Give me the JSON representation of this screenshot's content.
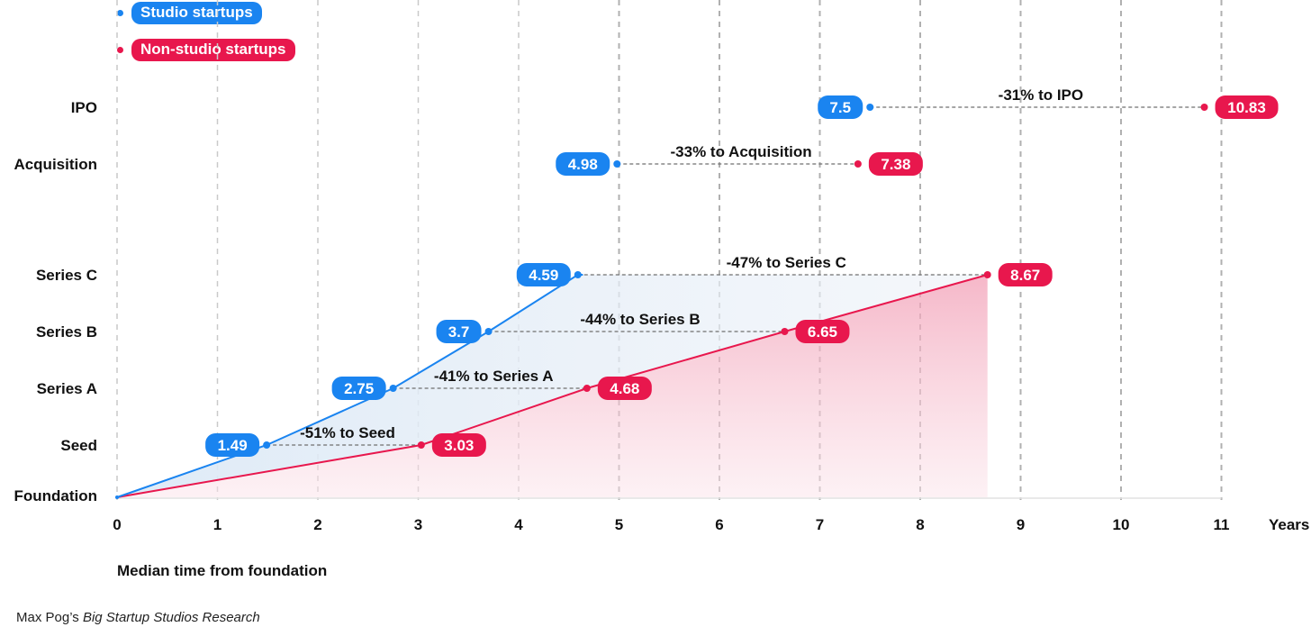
{
  "colors": {
    "studio": "#1a84f0",
    "nonstudio": "#e8174d",
    "grid": "#c9c9c9",
    "connector": "#6f6f6f"
  },
  "legend": [
    {
      "name": "Studio startups",
      "color": "#1a84f0"
    },
    {
      "name": "Non-studio startups",
      "color": "#e8174d"
    }
  ],
  "chart_data": {
    "type": "line",
    "xlabel": "Median time from foundation",
    "x_unit_label": "Years",
    "xlim": [
      0,
      11
    ],
    "x_ticks": [
      "0",
      "1",
      "2",
      "3",
      "4",
      "5",
      "6",
      "7",
      "8",
      "9",
      "10",
      "11"
    ],
    "y_categories": [
      "Foundation",
      "Seed",
      "Series A",
      "Series B",
      "Series C",
      "Acquisition",
      "IPO"
    ],
    "series": [
      {
        "name": "Studio startups",
        "color": "#1a84f0",
        "points": [
          {
            "stage": "Foundation",
            "years": 0
          },
          {
            "stage": "Seed",
            "years": 1.49
          },
          {
            "stage": "Series A",
            "years": 2.75
          },
          {
            "stage": "Series B",
            "years": 3.7
          },
          {
            "stage": "Series C",
            "years": 4.59
          },
          {
            "stage": "Acquisition",
            "years": 4.98
          },
          {
            "stage": "IPO",
            "years": 7.5
          }
        ]
      },
      {
        "name": "Non-studio startups",
        "color": "#e8174d",
        "points": [
          {
            "stage": "Foundation",
            "years": 0
          },
          {
            "stage": "Seed",
            "years": 3.03
          },
          {
            "stage": "Series A",
            "years": 4.68
          },
          {
            "stage": "Series B",
            "years": 6.65
          },
          {
            "stage": "Series C",
            "years": 8.67
          },
          {
            "stage": "Acquisition",
            "years": 7.38
          },
          {
            "stage": "IPO",
            "years": 10.83
          }
        ]
      }
    ],
    "comparisons": [
      {
        "stage": "Seed",
        "label": "-51% to Seed"
      },
      {
        "stage": "Series A",
        "label": "-41% to Series A"
      },
      {
        "stage": "Series B",
        "label": "-44% to Series B"
      },
      {
        "stage": "Series C",
        "label": "-47% to Series C"
      },
      {
        "stage": "Acquisition",
        "label": "-33% to Acquisition"
      },
      {
        "stage": "IPO",
        "label": "-31% to IPO"
      }
    ],
    "studio_labels": [
      "1.49",
      "2.75",
      "3.7",
      "4.59",
      "4.98",
      "7.5"
    ],
    "nonstudio_labels": [
      "3.03",
      "4.68",
      "6.65",
      "8.67",
      "7.38",
      "10.83"
    ]
  },
  "caption": "Median time from foundation",
  "credit": {
    "author": "Max Pog’s ",
    "title": "Big Startup Studios Research"
  }
}
